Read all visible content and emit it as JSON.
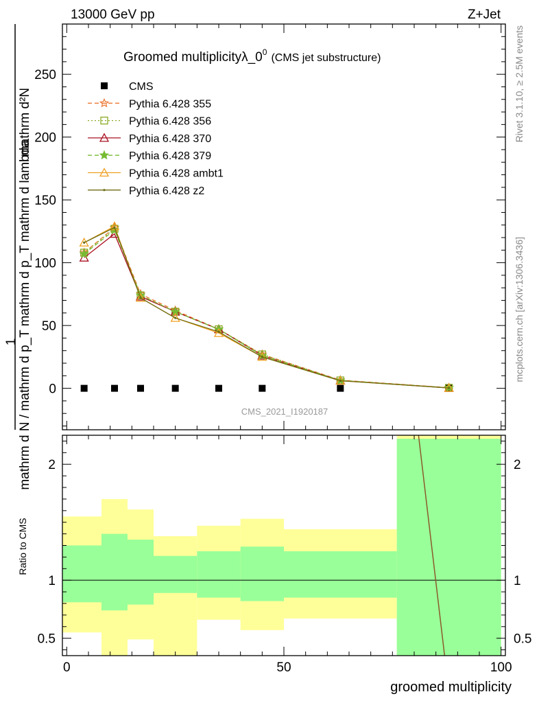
{
  "header": {
    "left": "13000 GeV pp",
    "right": "Z+Jet"
  },
  "side_labels": {
    "right_top": "Rivet 3.1.10, ≥ 2.5M events",
    "right_bottom": "mcplots.cern.ch [arXiv:1306.3436]"
  },
  "chart_data": [
    {
      "type": "line",
      "title": "Groomed multiplicityλ_0",
      "title_superscript": "0",
      "subtitle": "(CMS jet substructure)",
      "watermark": "CMS_2021_I1920187",
      "ylabel_numerator": "mathrm d²N",
      "ylabel_denominator": "mathrm d N / mathrm d p_T mathrm d p_T mathrm d lambda",
      "ylabel_prefix": "1",
      "xlim": [
        -1,
        101
      ],
      "ylim": [
        -33,
        290
      ],
      "yticks": [
        0,
        50,
        100,
        150,
        200,
        250
      ],
      "legend_position": "top-left",
      "x": [
        4,
        11,
        17,
        25,
        35,
        45,
        63,
        88
      ],
      "series": [
        {
          "name": "CMS",
          "color": "#000000",
          "marker": "square",
          "line": "none",
          "values": [
            0,
            0,
            0,
            0,
            0,
            0,
            0,
            0
          ]
        },
        {
          "name": "Pythia 6.428 355",
          "color": "#ee7733",
          "marker": "star-open",
          "line": "dashed",
          "values": [
            108,
            128,
            75,
            62,
            47,
            27,
            6.5,
            0.5
          ]
        },
        {
          "name": "Pythia 6.428 356",
          "color": "#88aa22",
          "marker": "square-open",
          "line": "dotted",
          "values": [
            108,
            127,
            74,
            61,
            47,
            27,
            6.3,
            0.4
          ]
        },
        {
          "name": "Pythia 6.428 370",
          "color": "#aa1122",
          "marker": "triangle-open",
          "line": "solid",
          "values": [
            104,
            123,
            73,
            61,
            47,
            26,
            6.2,
            0.3
          ]
        },
        {
          "name": "Pythia 6.428 379",
          "color": "#77bb33",
          "marker": "star",
          "line": "dashed",
          "values": [
            107,
            126,
            74,
            61,
            47,
            26,
            6.3,
            0.4
          ]
        },
        {
          "name": "Pythia 6.428 ambt1",
          "color": "#f0a020",
          "marker": "triangle-open",
          "line": "solid",
          "values": [
            116,
            129,
            72,
            56,
            44,
            25,
            6.0,
            0.3
          ]
        },
        {
          "name": "Pythia 6.428 z2",
          "color": "#6b6b10",
          "marker": "dot",
          "line": "solid",
          "values": [
            116,
            128,
            72,
            56,
            45,
            25,
            6.0,
            0.3
          ]
        }
      ]
    },
    {
      "type": "area",
      "ylabel": "Ratio to CMS",
      "xlabel": "groomed multiplicity",
      "xlim": [
        -1,
        101
      ],
      "ylim": [
        0.35,
        2.25
      ],
      "xticks": [
        0,
        50,
        100
      ],
      "yticks": [
        0.5,
        1,
        2
      ],
      "reference_line": 1,
      "bins": [
        {
          "x0": -1,
          "x1": 8,
          "inner": [
            0.81,
            1.3
          ],
          "outer": [
            0.55,
            1.55
          ]
        },
        {
          "x0": 8,
          "x1": 14,
          "inner": [
            0.74,
            1.4
          ],
          "outer": [
            0.35,
            1.7
          ]
        },
        {
          "x0": 14,
          "x1": 20,
          "inner": [
            0.79,
            1.35
          ],
          "outer": [
            0.49,
            1.61
          ]
        },
        {
          "x0": 20,
          "x1": 30,
          "inner": [
            0.89,
            1.21
          ],
          "outer": [
            0.35,
            1.38
          ]
        },
        {
          "x0": 30,
          "x1": 40,
          "inner": [
            0.85,
            1.25
          ],
          "outer": [
            0.66,
            1.47
          ]
        },
        {
          "x0": 40,
          "x1": 50,
          "inner": [
            0.82,
            1.29
          ],
          "outer": [
            0.57,
            1.53
          ]
        },
        {
          "x0": 50,
          "x1": 76,
          "inner": [
            0.85,
            1.25
          ],
          "outer": [
            0.67,
            1.44
          ]
        },
        {
          "x0": 76,
          "x1": 100,
          "inner": [
            0.35,
            2.22
          ],
          "outer": [
            0.35,
            2.25
          ]
        }
      ],
      "ratio_line": {
        "x": [
          81,
          87
        ],
        "y": [
          2.25,
          0.35
        ],
        "color": "#8b5a2b"
      }
    }
  ],
  "colors": {
    "inner_band": "#99ff99",
    "outer_band": "#ffff99"
  }
}
